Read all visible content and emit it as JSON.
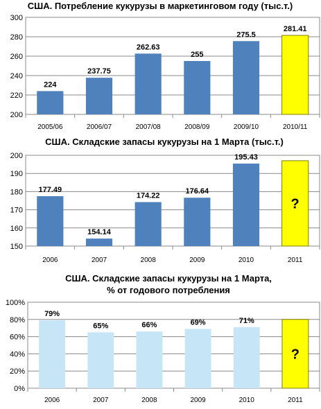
{
  "chart_data": [
    {
      "type": "bar",
      "title": "США. Потребление кукурузы в маркетинговом году (тыс.т.)",
      "categories": [
        "2005/06",
        "2006/07",
        "2007/08",
        "2008/09",
        "2009/10",
        "2010/11"
      ],
      "values": [
        224,
        237.75,
        262.63,
        255,
        275.5,
        281.41
      ],
      "data_labels": [
        "224",
        "237.75",
        "262.63",
        "255",
        "275.5",
        "281.41"
      ],
      "ylim": [
        200,
        300
      ],
      "yticks": [
        "200",
        "220",
        "240",
        "260",
        "280",
        "300"
      ],
      "grid": true,
      "bar_color": "#4f81bd",
      "highlight_index": 5,
      "highlight_color": "#ffff00",
      "highlight_marker": ""
    },
    {
      "type": "bar",
      "title": "США. Складские запасы кукурузы на 1 Марта (тыс.т.)",
      "categories": [
        "2006",
        "2007",
        "2008",
        "2009",
        "2010",
        "2011"
      ],
      "values": [
        177.49,
        154.14,
        174.22,
        176.64,
        195.43,
        197
      ],
      "data_labels": [
        "177.49",
        "154.14",
        "174.22",
        "176.64",
        "195.43",
        ""
      ],
      "ylim": [
        150,
        200
      ],
      "yticks": [
        "150",
        "160",
        "170",
        "180",
        "190",
        "200"
      ],
      "grid": true,
      "bar_color": "#4f81bd",
      "highlight_index": 5,
      "highlight_color": "#ffff00",
      "highlight_marker": "?"
    },
    {
      "type": "bar",
      "title": "США. Складские запасы кукурузы на 1 Марта,",
      "title2": "% от годового потребления",
      "categories": [
        "2006",
        "2007",
        "2008",
        "2009",
        "2010",
        "2011"
      ],
      "values": [
        79,
        65,
        66,
        69,
        71,
        80
      ],
      "data_labels": [
        "79%",
        "65%",
        "66%",
        "69%",
        "71%",
        ""
      ],
      "ylim": [
        0,
        100
      ],
      "yticks": [
        "0%",
        "20%",
        "40%",
        "60%",
        "80%",
        "100%"
      ],
      "grid": true,
      "bar_color": "#c6e6f8",
      "highlight_index": 5,
      "highlight_color": "#ffff00",
      "highlight_marker": "?"
    }
  ]
}
